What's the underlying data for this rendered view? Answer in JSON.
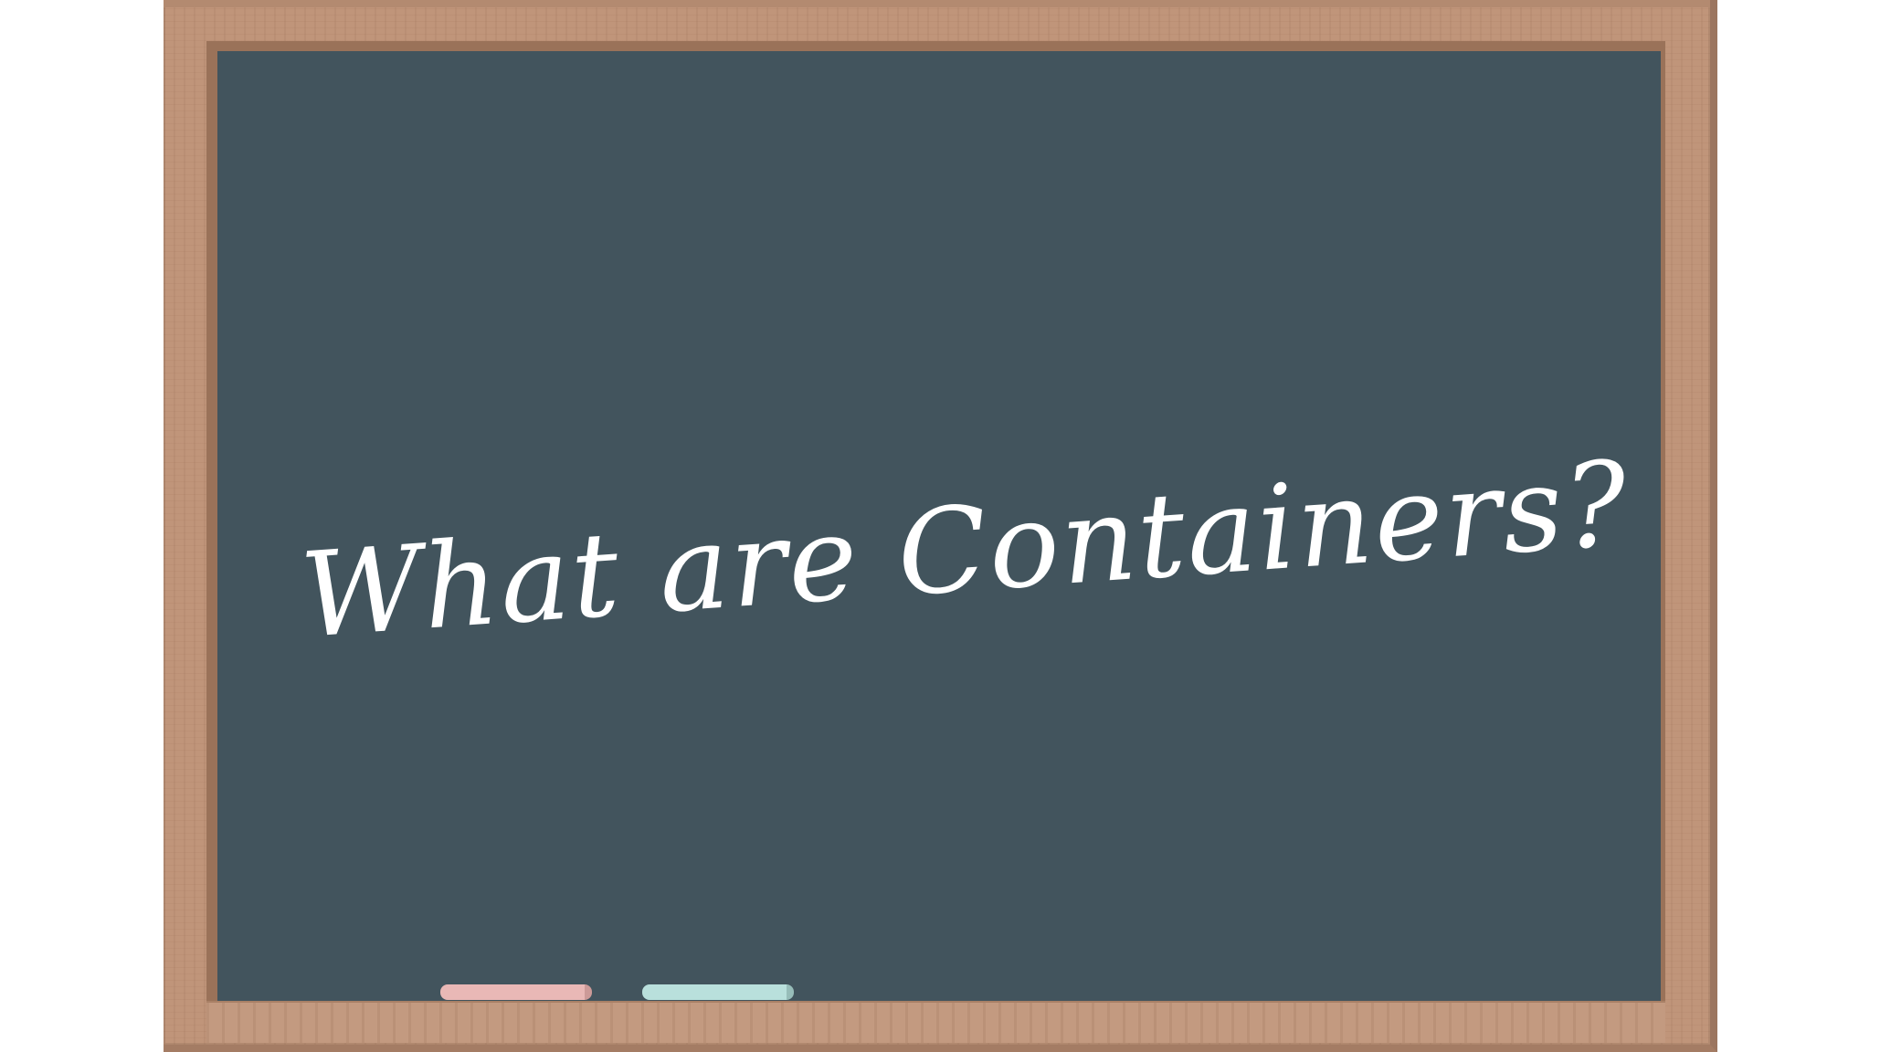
{
  "board": {
    "headline": "What are Containers?"
  },
  "colors": {
    "frame_wood": "#c0957a",
    "chalkboard": "#42545d",
    "chalk_text": "#ffffff",
    "chalk_pink": "#e9b8b6",
    "chalk_blue": "#b9e0dc"
  },
  "icons": {
    "chalk_pink": "pink-chalk-stick",
    "chalk_blue": "blue-chalk-stick"
  }
}
